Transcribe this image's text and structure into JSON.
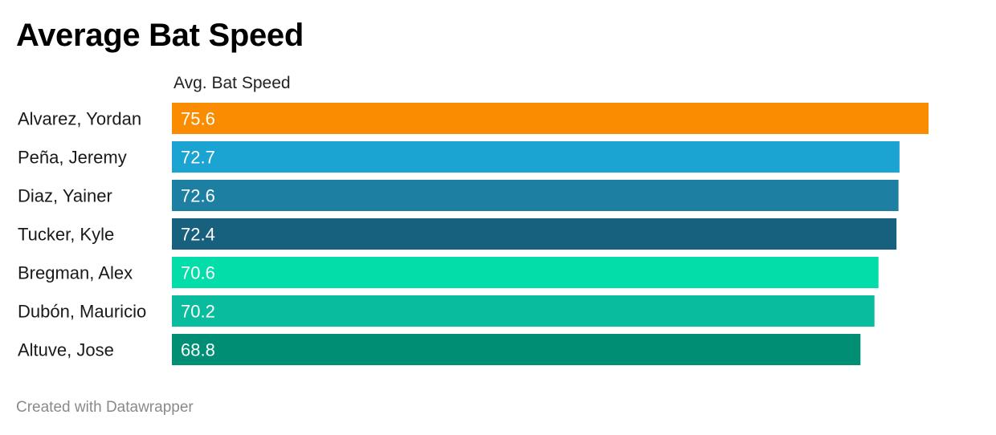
{
  "title": "Average Bat Speed",
  "footer": "Created with Datawrapper",
  "chart_data": {
    "type": "bar",
    "orientation": "horizontal",
    "column_header": "Avg. Bat Speed",
    "categories": [
      "Alvarez, Yordan",
      "Peña, Jeremy",
      "Diaz, Yainer",
      "Tucker, Kyle",
      "Bregman, Alex",
      "Dubón, Mauricio",
      "Altuve, Jose"
    ],
    "values": [
      75.6,
      72.7,
      72.6,
      72.4,
      70.6,
      70.2,
      68.8
    ],
    "value_labels": [
      "75.6",
      "72.7",
      "72.6",
      "72.4",
      "70.6",
      "70.2",
      "68.8"
    ],
    "colors": [
      "#f98c00",
      "#1ba3d1",
      "#1d80a3",
      "#17617e",
      "#02dda9",
      "#0abc9e",
      "#008f74"
    ],
    "xlim": [
      0,
      75.6
    ],
    "grid": false,
    "legend": "none"
  }
}
